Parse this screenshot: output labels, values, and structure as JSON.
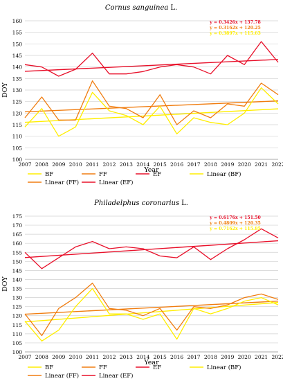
{
  "colors": {
    "BF": "#ffee00",
    "FF": "#f07d10",
    "EF": "#e8102a",
    "grid": "#d0d0d0",
    "axis": "#9a9a9a"
  },
  "chart_data": [
    {
      "type": "line",
      "title_name": "Cornus sanguinea",
      "title_author": "L.",
      "xlabel": "Year",
      "ylabel": "DOY",
      "ylim": [
        100,
        160
      ],
      "yticks": [
        100,
        105,
        110,
        115,
        120,
        125,
        130,
        135,
        140,
        145,
        150,
        155,
        160
      ],
      "grid": "horizontal",
      "legend_position": "bottom",
      "x": [
        2007,
        2008,
        2009,
        2010,
        2011,
        2012,
        2013,
        2014,
        2015,
        2016,
        2017,
        2018,
        2019,
        2020,
        2021,
        2022
      ],
      "series": [
        {
          "name": "BF",
          "key": "BF",
          "values": [
            114,
            122,
            110,
            114,
            129,
            121,
            119,
            115,
            123,
            111,
            118,
            116,
            115,
            120,
            131,
            124
          ]
        },
        {
          "name": "FF",
          "key": "FF",
          "values": [
            118,
            127,
            117,
            117,
            134,
            123,
            122,
            118,
            128,
            115,
            121,
            118,
            124,
            123,
            133,
            128
          ]
        },
        {
          "name": "EF",
          "key": "EF",
          "values": [
            141,
            140,
            136,
            139,
            146,
            137,
            137,
            138,
            140,
            141,
            140,
            137,
            145,
            141,
            151,
            142
          ]
        }
      ],
      "trendlines": [
        {
          "name": "Linear (BF)",
          "key": "BF",
          "slope": 0.3897,
          "intercept": 115.63,
          "equation": "y = 0.3897x + 115.63"
        },
        {
          "name": "Linear (FF)",
          "key": "FF",
          "slope": 0.3162,
          "intercept": 120.25,
          "equation": "y = 0.3162x + 120.25"
        },
        {
          "name": "Linear (EF)",
          "key": "EF",
          "slope": 0.3426,
          "intercept": 137.78,
          "equation": "y = 0.3426x + 137.78"
        }
      ],
      "legend": [
        "BF",
        "FF",
        "EF",
        "Linear (BF)",
        "Linear (FF)",
        "Linear (EF)"
      ]
    },
    {
      "type": "line",
      "title_name": "Philadelphus coronarius",
      "title_author": "L.",
      "xlabel": "Year",
      "ylabel": "DOY",
      "ylim": [
        100,
        175
      ],
      "yticks": [
        100,
        105,
        110,
        115,
        120,
        125,
        130,
        135,
        140,
        145,
        150,
        155,
        160,
        165,
        170,
        175
      ],
      "grid": "horizontal",
      "legend_position": "bottom",
      "x": [
        2007,
        2008,
        2009,
        2010,
        2011,
        2012,
        2013,
        2014,
        2015,
        2016,
        2017,
        2018,
        2019,
        2020,
        2021,
        2022
      ],
      "series": [
        {
          "name": "BF",
          "key": "BF",
          "values": [
            117,
            106,
            112,
            125,
            135,
            121,
            121,
            118,
            121,
            107,
            124,
            121,
            124,
            128,
            130,
            126
          ]
        },
        {
          "name": "FF",
          "key": "FF",
          "values": [
            121,
            109,
            124,
            130,
            138,
            124,
            123,
            120,
            124,
            112,
            125,
            124,
            126,
            130,
            132,
            129
          ]
        },
        {
          "name": "EF",
          "key": "EF",
          "values": [
            155,
            146,
            152,
            158,
            161,
            157,
            158,
            157,
            153,
            152,
            158,
            151,
            157,
            162,
            168,
            163
          ]
        }
      ],
      "trendlines": [
        {
          "name": "Linear (BF)",
          "key": "BF",
          "slope": 0.7162,
          "intercept": 115.85,
          "equation": "y = 0.7162x + 115.85"
        },
        {
          "name": "Linear (FF)",
          "key": "FF",
          "slope": 0.4809,
          "intercept": 120.35,
          "equation": "y = 0.4809x + 120.35"
        },
        {
          "name": "Linear (EF)",
          "key": "EF",
          "slope": 0.6176,
          "intercept": 151.5,
          "equation": "y = 0.6176x + 151.50"
        }
      ],
      "legend": [
        "BF",
        "FF",
        "EF",
        "Linear (BF)",
        "Linear (FF)",
        "Linear (EF)"
      ]
    }
  ]
}
